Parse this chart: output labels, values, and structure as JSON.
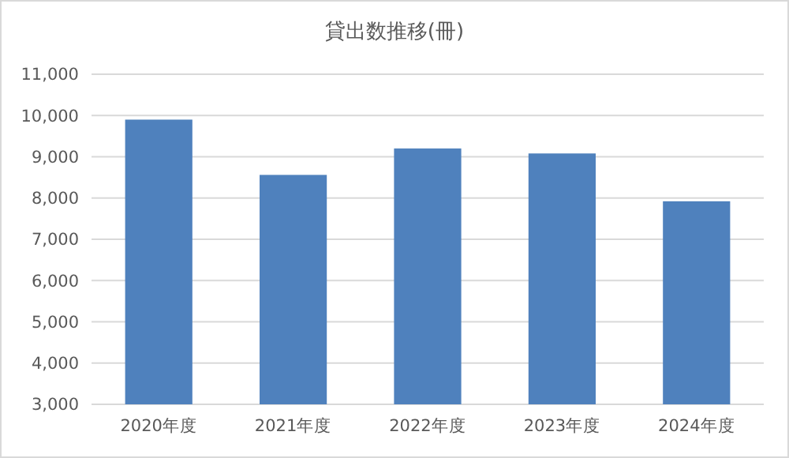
{
  "chart_data": {
    "type": "bar",
    "title": "貸出数推移(冊)",
    "categories": [
      "2020年度",
      "2021年度",
      "2022年度",
      "2023年度",
      "2024年度"
    ],
    "values": [
      9900,
      8560,
      9200,
      9080,
      7920
    ],
    "color": "#4f81bd",
    "ylim": [
      3000,
      11000
    ],
    "yticks": [
      {
        "value": 3000,
        "label": "3,000"
      },
      {
        "value": 4000,
        "label": "4,000"
      },
      {
        "value": 5000,
        "label": "5,000"
      },
      {
        "value": 6000,
        "label": "6,000"
      },
      {
        "value": 7000,
        "label": "7,000"
      },
      {
        "value": 8000,
        "label": "8,000"
      },
      {
        "value": 9000,
        "label": "9,000"
      },
      {
        "value": 10000,
        "label": "10,000"
      },
      {
        "value": 11000,
        "label": "11,000"
      }
    ],
    "grid": "y"
  }
}
